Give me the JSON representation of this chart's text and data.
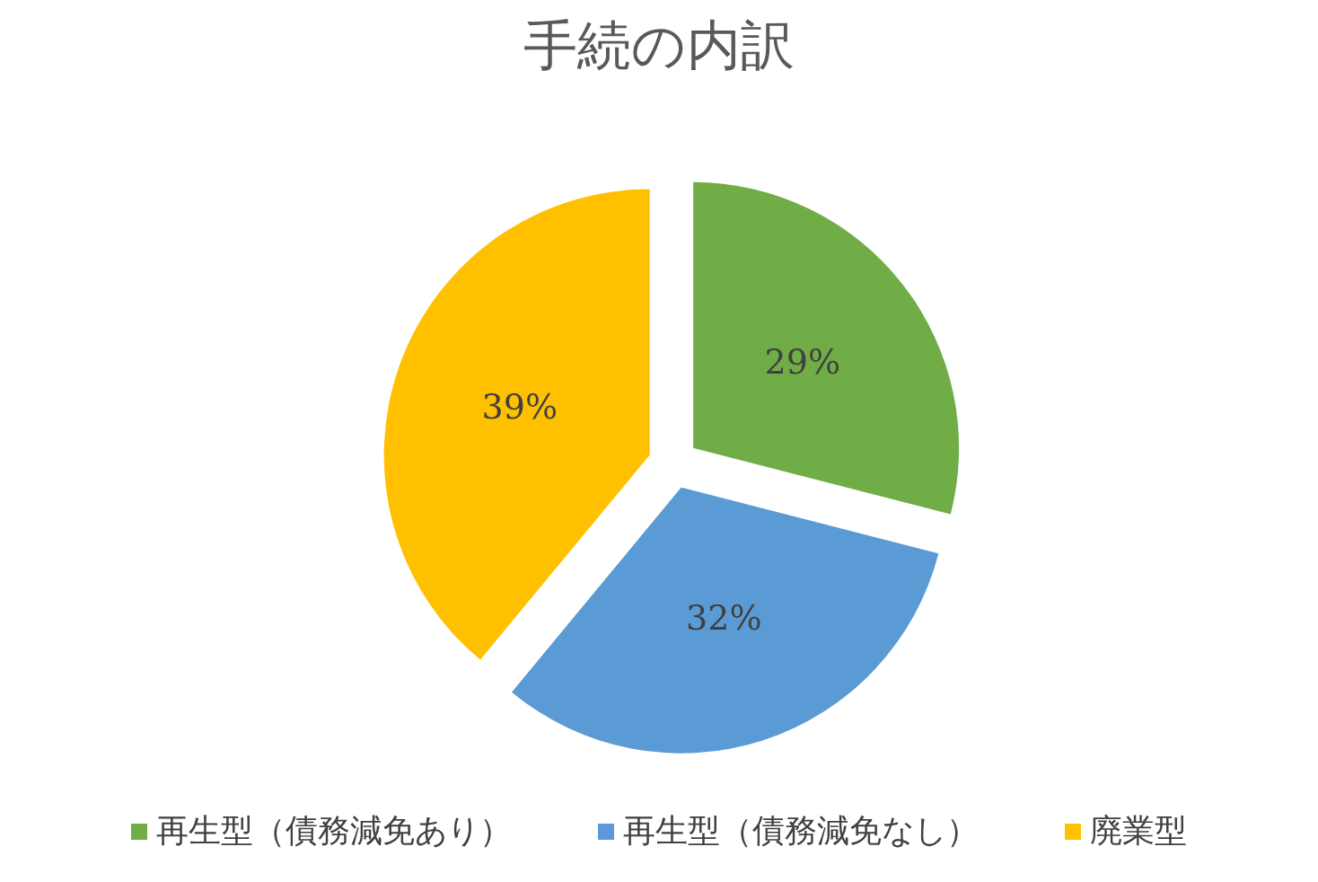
{
  "chart_data": {
    "type": "pie",
    "title": "手続の内訳",
    "categories": [
      "再生型（債務減免あり）",
      "再生型（債務減免なし）",
      "廃業型"
    ],
    "values": [
      29,
      32,
      39
    ],
    "colors": [
      "#70ad47",
      "#5b9bd5",
      "#ffc000"
    ],
    "value_labels": [
      "29%",
      "32%",
      "39%"
    ],
    "legend": "bottom"
  }
}
